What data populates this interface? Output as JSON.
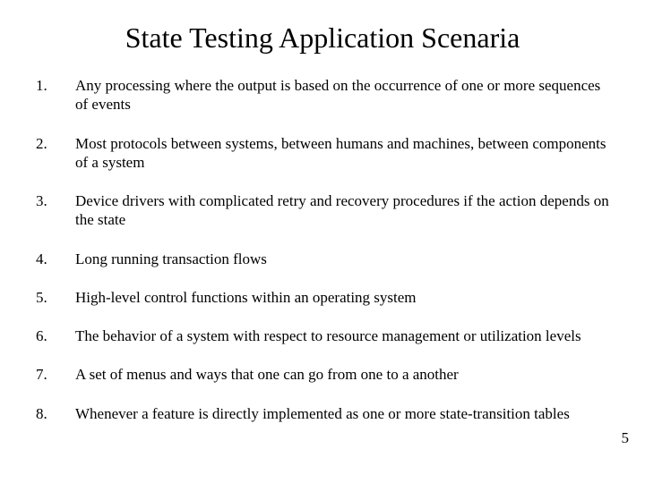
{
  "title": "State Testing Application Scenaria",
  "items": [
    {
      "n": "1.",
      "t": "Any processing where the output is based on the occurrence of one or more sequences of events"
    },
    {
      "n": "2.",
      "t": "Most protocols between systems, between humans and machines, between components of a system"
    },
    {
      "n": "3.",
      "t": "Device drivers with complicated retry and recovery procedures if the action depends on the state"
    },
    {
      "n": "4.",
      "t": "Long running transaction flows"
    },
    {
      "n": "5.",
      "t": "High-level control functions within an operating system"
    },
    {
      "n": "6.",
      "t": "The behavior of a system with respect to resource management or utilization levels"
    },
    {
      "n": "7.",
      "t": "A set of menus and ways that one can go from one to a another"
    },
    {
      "n": "8.",
      "t": "Whenever a feature is directly implemented as one or more state-transition tables"
    }
  ],
  "pageNumber": "5",
  "style": {
    "background_color": "#ffffff",
    "text_color": "#000000",
    "title_fontsize": 32,
    "body_fontsize": 17,
    "font_family": "Times New Roman"
  }
}
